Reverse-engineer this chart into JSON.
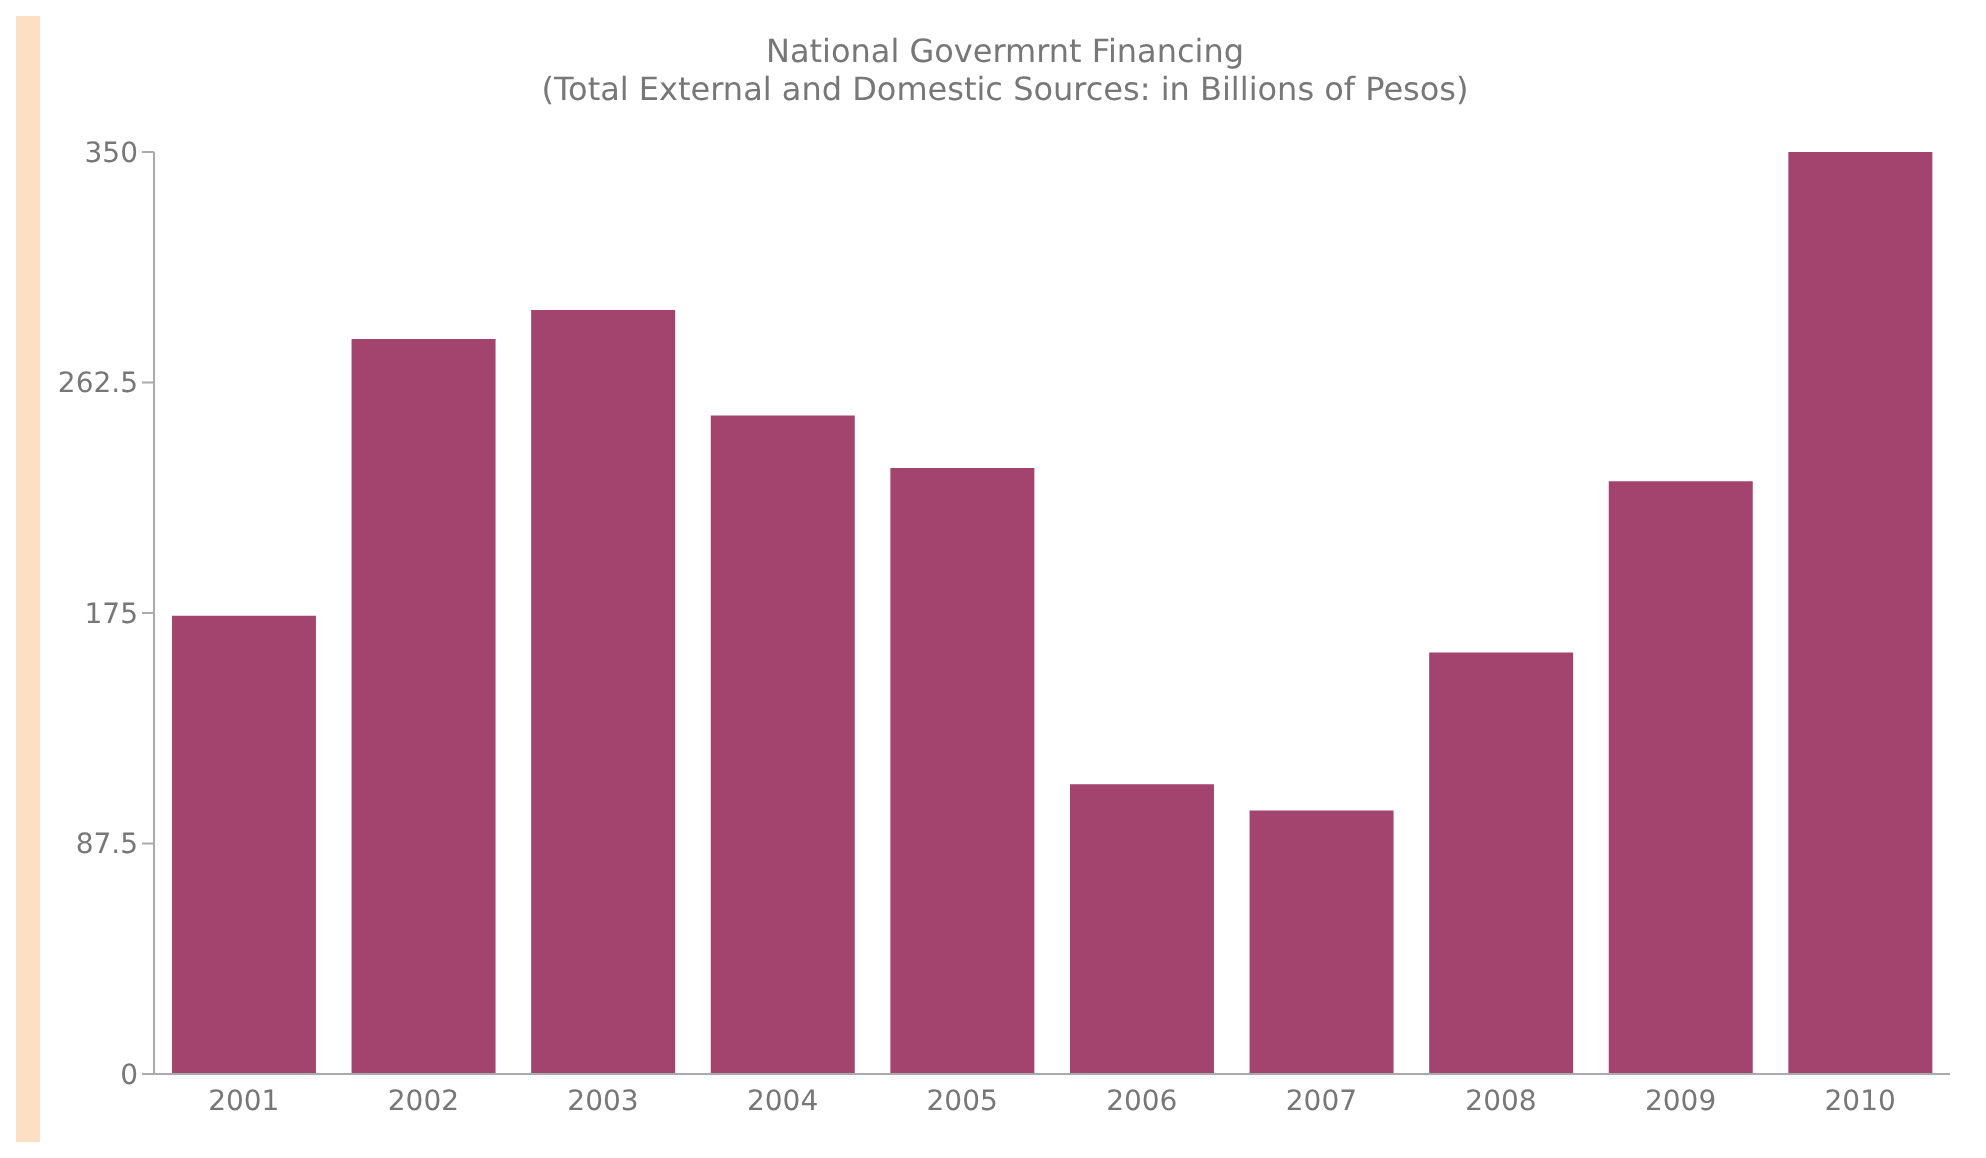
{
  "chart_data": {
    "type": "bar",
    "title": "National Govermrnt Financing",
    "subtitle": "(Total External and Domestic Sources: in Billions of Pesos)",
    "categories": [
      "2001",
      "2002",
      "2003",
      "2004",
      "2005",
      "2006",
      "2007",
      "2008",
      "2009",
      "2010"
    ],
    "values": [
      174,
      279,
      290,
      250,
      230,
      110,
      100,
      160,
      225,
      350
    ],
    "color": "#a3446e",
    "ylim": [
      0,
      350
    ],
    "yticks": [
      0,
      87.5,
      175,
      262.5,
      350
    ],
    "grid": false
  }
}
